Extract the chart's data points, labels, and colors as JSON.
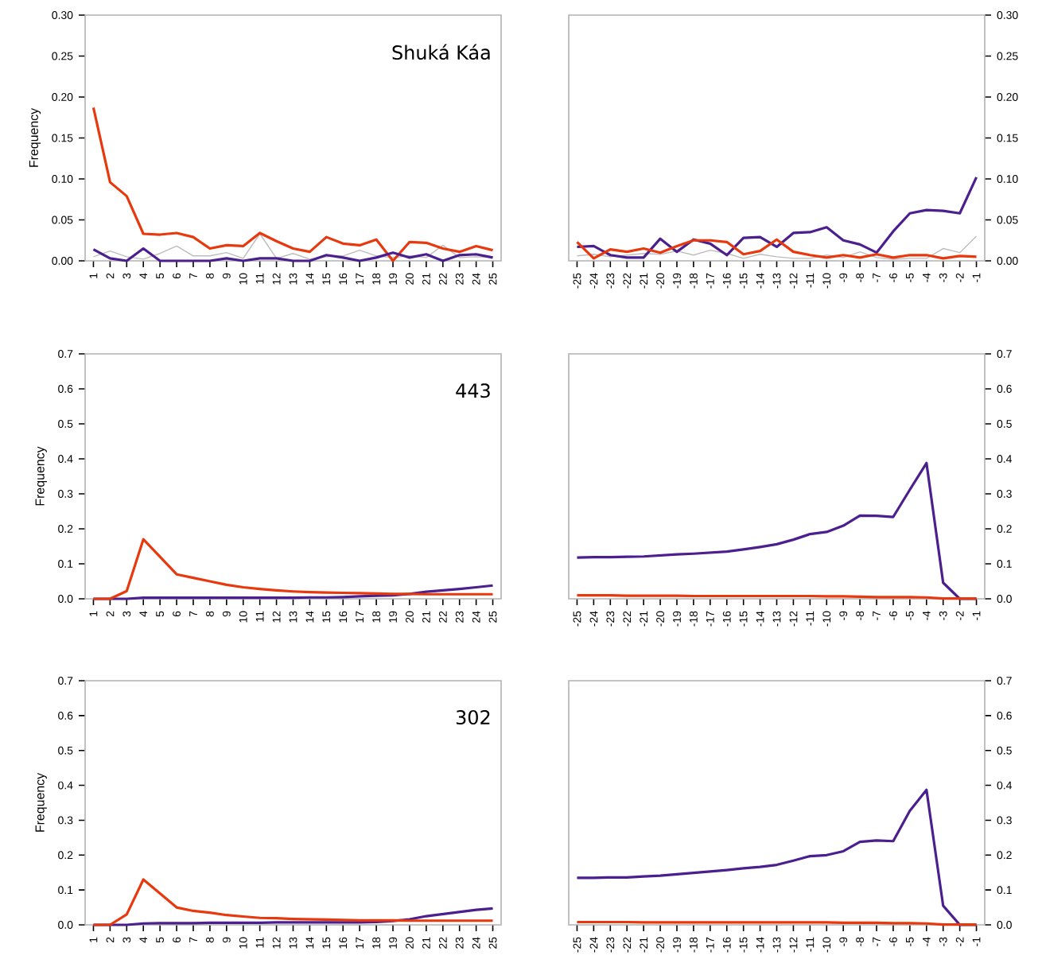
{
  "chart_data": [
    {
      "type": "line",
      "title": "Shuká Káa",
      "ylabel": "Frequency",
      "x": [
        1,
        2,
        3,
        4,
        5,
        6,
        7,
        8,
        9,
        10,
        11,
        12,
        13,
        14,
        15,
        16,
        17,
        18,
        19,
        20,
        21,
        22,
        23,
        24,
        25
      ],
      "xlim": [
        0.5,
        25.5
      ],
      "xticks": [
        1,
        2,
        3,
        4,
        5,
        6,
        7,
        8,
        9,
        10,
        11,
        12,
        13,
        14,
        15,
        16,
        17,
        18,
        19,
        20,
        21,
        22,
        23,
        24,
        25
      ],
      "ylim": [
        0,
        0.3
      ],
      "yticks": [
        {
          "value": 0,
          "label": "0.00"
        },
        {
          "value": 0.05,
          "label": "0.05"
        },
        {
          "value": 0.1,
          "label": "0.10"
        },
        {
          "value": 0.15,
          "label": "0.15"
        },
        {
          "value": 0.2,
          "label": "0.20"
        },
        {
          "value": 0.25,
          "label": "0.25"
        },
        {
          "value": 0.3,
          "label": "0.30"
        }
      ],
      "series": [
        {
          "color": "#bdbdbd",
          "values": [
            0.005,
            0.012,
            0.005,
            0.002,
            0.009,
            0.018,
            0.006,
            0.006,
            0.01,
            0.003,
            0.033,
            0.003,
            0.009,
            0.002,
            0.005,
            0.006,
            0.013,
            0.006,
            0.004,
            0.006,
            0.004,
            0.019,
            0.004,
            0.005,
            0.004
          ]
        },
        {
          "color": "#e8380d",
          "values": [
            0.187,
            0.096,
            0.079,
            0.033,
            0.032,
            0.034,
            0.029,
            0.015,
            0.019,
            0.018,
            0.034,
            0.024,
            0.015,
            0.011,
            0.029,
            0.021,
            0.019,
            0.026,
            0.0,
            0.023,
            0.022,
            0.015,
            0.011,
            0.018,
            0.013
          ]
        },
        {
          "color": "#4b1f8e",
          "values": [
            0.014,
            0.003,
            0.0,
            0.015,
            0.0,
            0.0,
            0.0,
            0.0,
            0.003,
            0.0,
            0.003,
            0.003,
            0.0,
            0.0,
            0.007,
            0.004,
            0.0,
            0.004,
            0.01,
            0.004,
            0.008,
            0.0,
            0.007,
            0.008,
            0.004
          ]
        }
      ]
    },
    {
      "type": "line",
      "x": [
        -25,
        -24,
        -23,
        -22,
        -21,
        -20,
        -19,
        -18,
        -17,
        -16,
        -15,
        -14,
        -13,
        -12,
        -11,
        -10,
        -9,
        -8,
        -7,
        -6,
        -5,
        -4,
        -3,
        -2,
        -1
      ],
      "xlim": [
        -25.5,
        -0.5
      ],
      "xticks": [
        -25,
        -24,
        -23,
        -22,
        -21,
        -20,
        -19,
        -18,
        -17,
        -16,
        -15,
        -14,
        -13,
        -12,
        -11,
        -10,
        -9,
        -8,
        -7,
        -6,
        -5,
        -4,
        -3,
        -2,
        -1
      ],
      "ylim": [
        0,
        0.3
      ],
      "yticks": [
        {
          "value": 0,
          "label": "0.00"
        },
        {
          "value": 0.05,
          "label": "0.05"
        },
        {
          "value": 0.1,
          "label": "0.10"
        },
        {
          "value": 0.15,
          "label": "0.15"
        },
        {
          "value": 0.2,
          "label": "0.20"
        },
        {
          "value": 0.25,
          "label": "0.25"
        },
        {
          "value": 0.3,
          "label": "0.30"
        }
      ],
      "series": [
        {
          "color": "#bdbdbd",
          "values": [
            0.006,
            0.008,
            0.005,
            0.007,
            0.009,
            0.008,
            0.012,
            0.007,
            0.013,
            0.009,
            0.003,
            0.008,
            0.005,
            0.003,
            0.003,
            0.007,
            0.004,
            0.011,
            0.004,
            0.002,
            0.003,
            0.003,
            0.015,
            0.01,
            0.03
          ]
        },
        {
          "color": "#4b1f8e",
          "values": [
            0.017,
            0.018,
            0.007,
            0.004,
            0.004,
            0.027,
            0.011,
            0.026,
            0.021,
            0.007,
            0.028,
            0.029,
            0.017,
            0.034,
            0.035,
            0.041,
            0.025,
            0.02,
            0.01,
            0.036,
            0.058,
            0.062,
            0.061,
            0.058,
            0.102
          ]
        },
        {
          "color": "#e8380d",
          "values": [
            0.023,
            0.003,
            0.014,
            0.011,
            0.015,
            0.01,
            0.018,
            0.025,
            0.025,
            0.023,
            0.008,
            0.012,
            0.026,
            0.011,
            0.007,
            0.004,
            0.007,
            0.004,
            0.008,
            0.004,
            0.007,
            0.007,
            0.003,
            0.006,
            0.005
          ]
        }
      ]
    },
    {
      "type": "line",
      "title": "443",
      "ylabel": "Frequency",
      "x": [
        1,
        2,
        3,
        4,
        5,
        6,
        7,
        8,
        9,
        10,
        11,
        12,
        13,
        14,
        15,
        16,
        17,
        18,
        19,
        20,
        21,
        22,
        23,
        24,
        25
      ],
      "xlim": [
        0.5,
        25.5
      ],
      "xticks": [
        1,
        2,
        3,
        4,
        5,
        6,
        7,
        8,
        9,
        10,
        11,
        12,
        13,
        14,
        15,
        16,
        17,
        18,
        19,
        20,
        21,
        22,
        23,
        24,
        25
      ],
      "ylim": [
        0,
        0.7
      ],
      "yticks": [
        {
          "value": 0,
          "label": "0.0"
        },
        {
          "value": 0.1,
          "label": "0.1"
        },
        {
          "value": 0.2,
          "label": "0.2"
        },
        {
          "value": 0.3,
          "label": "0.3"
        },
        {
          "value": 0.4,
          "label": "0.4"
        },
        {
          "value": 0.5,
          "label": "0.5"
        },
        {
          "value": 0.6,
          "label": "0.6"
        },
        {
          "value": 0.7,
          "label": "0.7"
        }
      ],
      "series": [
        {
          "color": "#4b1f8e",
          "values": [
            0,
            0,
            0,
            0.003,
            0.003,
            0.003,
            0.003,
            0.003,
            0.003,
            0.003,
            0.003,
            0.003,
            0.003,
            0.004,
            0.004,
            0.005,
            0.007,
            0.009,
            0.01,
            0.014,
            0.02,
            0.024,
            0.028,
            0.033,
            0.038
          ]
        },
        {
          "color": "#e8380d",
          "values": [
            0,
            0,
            0.022,
            0.17,
            0.12,
            0.07,
            0.06,
            0.05,
            0.04,
            0.033,
            0.028,
            0.024,
            0.021,
            0.019,
            0.018,
            0.017,
            0.016,
            0.015,
            0.014,
            0.014,
            0.013,
            0.013,
            0.013,
            0.013,
            0.013
          ]
        }
      ]
    },
    {
      "type": "line",
      "x": [
        -25,
        -24,
        -23,
        -22,
        -21,
        -20,
        -19,
        -18,
        -17,
        -16,
        -15,
        -14,
        -13,
        -12,
        -11,
        -10,
        -9,
        -8,
        -7,
        -6,
        -5,
        -4,
        -3,
        -2,
        -1
      ],
      "xlim": [
        -25.5,
        -0.5
      ],
      "xticks": [
        -25,
        -24,
        -23,
        -22,
        -21,
        -20,
        -19,
        -18,
        -17,
        -16,
        -15,
        -14,
        -13,
        -12,
        -11,
        -10,
        -9,
        -8,
        -7,
        -6,
        -5,
        -4,
        -3,
        -2,
        -1
      ],
      "ylim": [
        0,
        0.7
      ],
      "yticks": [
        {
          "value": 0,
          "label": "0.0"
        },
        {
          "value": 0.1,
          "label": "0.1"
        },
        {
          "value": 0.2,
          "label": "0.2"
        },
        {
          "value": 0.3,
          "label": "0.3"
        },
        {
          "value": 0.4,
          "label": "0.4"
        },
        {
          "value": 0.5,
          "label": "0.5"
        },
        {
          "value": 0.6,
          "label": "0.6"
        },
        {
          "value": 0.7,
          "label": "0.7"
        }
      ],
      "series": [
        {
          "color": "#4b1f8e",
          "values": [
            0.118,
            0.119,
            0.119,
            0.12,
            0.121,
            0.124,
            0.127,
            0.129,
            0.132,
            0.135,
            0.141,
            0.148,
            0.156,
            0.169,
            0.185,
            0.191,
            0.209,
            0.238,
            0.237,
            0.234,
            0.312,
            0.388,
            0.046,
            0.0,
            0.0
          ]
        },
        {
          "color": "#e8380d",
          "values": [
            0.01,
            0.01,
            0.01,
            0.009,
            0.009,
            0.009,
            0.009,
            0.008,
            0.008,
            0.008,
            0.008,
            0.008,
            0.008,
            0.008,
            0.008,
            0.007,
            0.007,
            0.006,
            0.005,
            0.005,
            0.005,
            0.004,
            0.001,
            0.001,
            0.001
          ]
        }
      ]
    },
    {
      "type": "line",
      "title": "302",
      "ylabel": "Frequency",
      "x": [
        1,
        2,
        3,
        4,
        5,
        6,
        7,
        8,
        9,
        10,
        11,
        12,
        13,
        14,
        15,
        16,
        17,
        18,
        19,
        20,
        21,
        22,
        23,
        24,
        25
      ],
      "xlim": [
        0.5,
        25.5
      ],
      "xticks": [
        1,
        2,
        3,
        4,
        5,
        6,
        7,
        8,
        9,
        10,
        11,
        12,
        13,
        14,
        15,
        16,
        17,
        18,
        19,
        20,
        21,
        22,
        23,
        24,
        25
      ],
      "ylim": [
        0,
        0.7
      ],
      "yticks": [
        {
          "value": 0,
          "label": "0.0"
        },
        {
          "value": 0.1,
          "label": "0.1"
        },
        {
          "value": 0.2,
          "label": "0.2"
        },
        {
          "value": 0.3,
          "label": "0.3"
        },
        {
          "value": 0.4,
          "label": "0.4"
        },
        {
          "value": 0.5,
          "label": "0.5"
        },
        {
          "value": 0.6,
          "label": "0.6"
        },
        {
          "value": 0.7,
          "label": "0.7"
        }
      ],
      "series": [
        {
          "color": "#4b1f8e",
          "values": [
            0,
            0,
            0,
            0.004,
            0.005,
            0.005,
            0.005,
            0.006,
            0.006,
            0.006,
            0.006,
            0.007,
            0.007,
            0.007,
            0.007,
            0.007,
            0.007,
            0.008,
            0.011,
            0.016,
            0.025,
            0.031,
            0.037,
            0.043,
            0.047
          ]
        },
        {
          "color": "#e8380d",
          "values": [
            0,
            0,
            0.03,
            0.13,
            0.09,
            0.05,
            0.04,
            0.035,
            0.028,
            0.024,
            0.02,
            0.019,
            0.017,
            0.016,
            0.015,
            0.014,
            0.013,
            0.013,
            0.013,
            0.012,
            0.012,
            0.012,
            0.012,
            0.012,
            0.012
          ]
        }
      ]
    },
    {
      "type": "line",
      "x": [
        -25,
        -24,
        -23,
        -22,
        -21,
        -20,
        -19,
        -18,
        -17,
        -16,
        -15,
        -14,
        -13,
        -12,
        -11,
        -10,
        -9,
        -8,
        -7,
        -6,
        -5,
        -4,
        -3,
        -2,
        -1
      ],
      "xlim": [
        -25.5,
        -0.5
      ],
      "xticks": [
        -25,
        -24,
        -23,
        -22,
        -21,
        -20,
        -19,
        -18,
        -17,
        -16,
        -15,
        -14,
        -13,
        -12,
        -11,
        -10,
        -9,
        -8,
        -7,
        -6,
        -5,
        -4,
        -3,
        -2,
        -1
      ],
      "ylim": [
        0,
        0.7
      ],
      "yticks": [
        {
          "value": 0,
          "label": "0.0"
        },
        {
          "value": 0.1,
          "label": "0.1"
        },
        {
          "value": 0.2,
          "label": "0.2"
        },
        {
          "value": 0.3,
          "label": "0.3"
        },
        {
          "value": 0.4,
          "label": "0.4"
        },
        {
          "value": 0.5,
          "label": "0.5"
        },
        {
          "value": 0.6,
          "label": "0.6"
        },
        {
          "value": 0.7,
          "label": "0.7"
        }
      ],
      "series": [
        {
          "color": "#4b1f8e",
          "values": [
            0.135,
            0.135,
            0.136,
            0.136,
            0.139,
            0.141,
            0.145,
            0.149,
            0.153,
            0.157,
            0.162,
            0.166,
            0.172,
            0.184,
            0.197,
            0.2,
            0.211,
            0.238,
            0.242,
            0.24,
            0.327,
            0.387,
            0.055,
            0.0,
            0.0
          ]
        },
        {
          "color": "#e8380d",
          "values": [
            0.008,
            0.008,
            0.008,
            0.008,
            0.007,
            0.007,
            0.007,
            0.007,
            0.007,
            0.007,
            0.007,
            0.007,
            0.007,
            0.007,
            0.007,
            0.007,
            0.006,
            0.006,
            0.006,
            0.005,
            0.005,
            0.004,
            0.001,
            0.001,
            0.001
          ]
        }
      ]
    }
  ]
}
